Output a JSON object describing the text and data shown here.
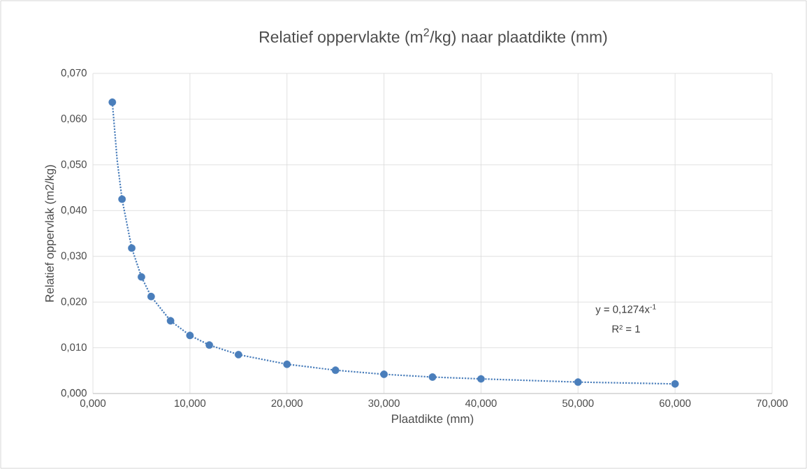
{
  "chart_data": {
    "type": "scatter",
    "title": "Relatief oppervlakte (m$^{2}$/kg) naar plaatdikte (mm)",
    "xlabel": "Plaatdikte (mm)",
    "ylabel": "Relatief oppervlak (m2/kg)",
    "series": [
      {
        "type": "scatter",
        "color": "#4a7ebb",
        "x": [
          2,
          3,
          4,
          5,
          6,
          8,
          10,
          12,
          15,
          20,
          25,
          30,
          35,
          40,
          50,
          60
        ],
        "values": [
          0.0637,
          0.0425,
          0.0318,
          0.0255,
          0.0212,
          0.0159,
          0.0127,
          0.0106,
          0.0085,
          0.0064,
          0.0051,
          0.0042,
          0.0036,
          0.0032,
          0.0025,
          0.0021
        ]
      },
      {
        "type": "line",
        "color": "#4a7ebb",
        "line_style": "dotted",
        "marker": "none",
        "x": [
          2,
          2.5,
          3,
          4,
          5,
          6,
          8,
          10,
          12,
          15,
          20,
          25,
          30,
          35,
          40,
          50,
          60
        ],
        "values": [
          0.0637,
          0.051,
          0.0425,
          0.0318,
          0.0255,
          0.0212,
          0.0159,
          0.0127,
          0.0106,
          0.0085,
          0.0064,
          0.0051,
          0.0042,
          0.0036,
          0.0032,
          0.0025,
          0.0021
        ]
      }
    ],
    "xlim": [
      0,
      70
    ],
    "ylim": [
      0,
      0.07
    ],
    "xticks": [
      {
        "value": 0,
        "label": "0,000"
      },
      {
        "value": 10,
        "label": "10,000"
      },
      {
        "value": 20,
        "label": "20,000"
      },
      {
        "value": 30,
        "label": "30,000"
      },
      {
        "value": 40,
        "label": "40,000"
      },
      {
        "value": 50,
        "label": "50,000"
      },
      {
        "value": 60,
        "label": "60,000"
      },
      {
        "value": 70,
        "label": "70,000"
      }
    ],
    "yticks": [
      {
        "value": 0,
        "label": "0,000"
      },
      {
        "value": 0.01,
        "label": "0,010"
      },
      {
        "value": 0.02,
        "label": "0,020"
      },
      {
        "value": 0.03,
        "label": "0,030"
      },
      {
        "value": 0.04,
        "label": "0,040"
      },
      {
        "value": 0.05,
        "label": "0,050"
      },
      {
        "value": 0.06,
        "label": "0,060"
      },
      {
        "value": 0.07,
        "label": "0,070"
      }
    ],
    "grid": true,
    "marker": "circle",
    "annotations": [
      "y = 0,1274x$^{-1}$",
      "R² = 1"
    ]
  }
}
